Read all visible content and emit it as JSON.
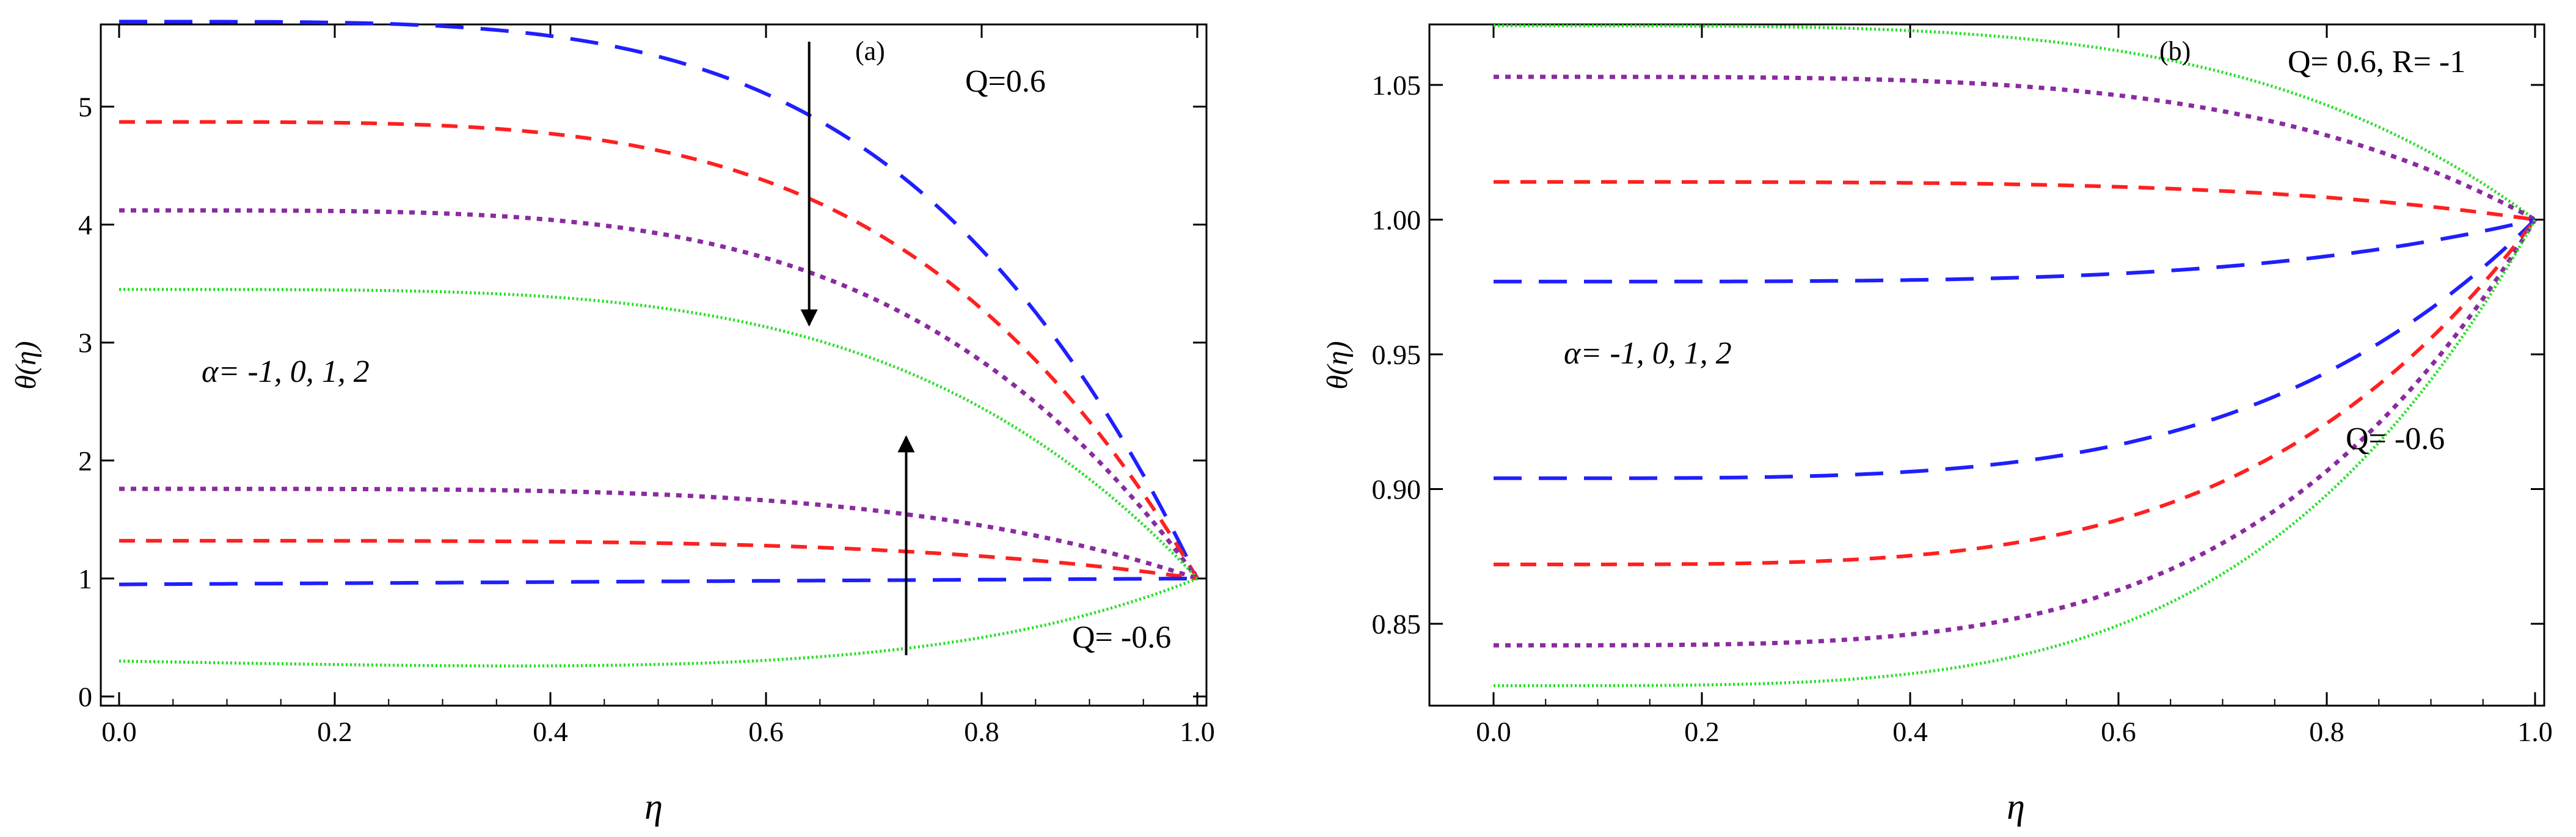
{
  "chart_data": [
    {
      "type": "line",
      "panel_label": "(a)",
      "xlabel": "η",
      "ylabel": "θ(η)",
      "xlim": [
        0.0,
        1.0
      ],
      "ylim": [
        0,
        5.8
      ],
      "xticks": [
        0.0,
        0.2,
        0.4,
        0.6,
        0.8,
        1.0
      ],
      "xtick_labels": [
        "0.0",
        "0.2",
        "0.4",
        "0.6",
        "0.8",
        "1.0"
      ],
      "yticks": [
        0,
        1,
        2,
        3,
        4,
        5
      ],
      "ytick_labels": [
        "0",
        "1",
        "2",
        "3",
        "4",
        "5"
      ],
      "annotations": [
        {
          "name": "panel-label",
          "text": "(a)"
        },
        {
          "name": "q-positive-label",
          "text": "Q=0.6"
        },
        {
          "name": "q-negative-label",
          "text": "Q= -0.6"
        },
        {
          "name": "alpha-label",
          "text": "α= -1, 0, 1, 2"
        }
      ],
      "series": [
        {
          "name": "Q=0.6, α=-1",
          "color": "#1f1fff",
          "style": "long-dash",
          "start": 5.72,
          "end": 1.0,
          "shape": "cap"
        },
        {
          "name": "Q=0.6, α=0",
          "color": "#ff2020",
          "style": "dash",
          "start": 4.87,
          "end": 1.0,
          "shape": "cap"
        },
        {
          "name": "Q=0.6, α=1",
          "color": "#8a2ba0",
          "style": "dot",
          "start": 4.12,
          "end": 1.0,
          "shape": "cap"
        },
        {
          "name": "Q=0.6, α=2",
          "color": "#22e022",
          "style": "fine-dot",
          "start": 3.45,
          "end": 1.0,
          "shape": "cap"
        },
        {
          "name": "Q=-0.6, α=1",
          "color": "#8a2ba0",
          "style": "dot",
          "start": 1.76,
          "end": 1.0,
          "shape": "cap"
        },
        {
          "name": "Q=-0.6, α=0",
          "color": "#ff2020",
          "style": "dash",
          "start": 1.32,
          "end": 1.0,
          "shape": "cap"
        },
        {
          "name": "Q=-0.6, α=-1",
          "color": "#1f1fff",
          "style": "long-dash",
          "start": 0.95,
          "end": 1.0,
          "shape": "flat"
        },
        {
          "name": "Q=-0.6, α=2",
          "color": "#22e022",
          "style": "fine-dot",
          "start": 0.3,
          "end": 1.0,
          "shape": "dip"
        }
      ],
      "arrows": [
        {
          "name": "arrow-down",
          "x": 0.64,
          "y_from": 5.55,
          "y_to": 3.15
        },
        {
          "name": "arrow-up",
          "x": 0.73,
          "y_from": 0.35,
          "y_to": 2.2
        }
      ]
    },
    {
      "type": "line",
      "panel_label": "(b)",
      "xlabel": "η",
      "ylabel": "θ(η)",
      "xlim": [
        0.0,
        1.0
      ],
      "ylim": [
        0.823,
        1.077
      ],
      "xticks": [
        0.0,
        0.2,
        0.4,
        0.6,
        0.8,
        1.0
      ],
      "xtick_labels": [
        "0.0",
        "0.2",
        "0.4",
        "0.6",
        "0.8",
        "1.0"
      ],
      "yticks": [
        0.85,
        0.9,
        0.95,
        1.0,
        1.05
      ],
      "ytick_labels": [
        "0.85",
        "0.90",
        "0.95",
        "1.00",
        "1.05"
      ],
      "annotations": [
        {
          "name": "panel-label",
          "text": "(b)"
        },
        {
          "name": "q-r-label",
          "text": "Q= 0.6, R= -1"
        },
        {
          "name": "q-negative-label",
          "text": "Q= -0.6"
        },
        {
          "name": "alpha-label",
          "text": "α= -1, 0, 1, 2"
        }
      ],
      "series": [
        {
          "name": "Q=0.6, α=2",
          "color": "#22e022",
          "style": "fine-dot",
          "start": 1.072,
          "end": 1.0,
          "shape": "cap"
        },
        {
          "name": "Q=0.6, α=1",
          "color": "#8a2ba0",
          "style": "dot",
          "start": 1.053,
          "end": 1.0,
          "shape": "cap"
        },
        {
          "name": "Q=0.6, α=0",
          "color": "#ff2020",
          "style": "dash",
          "start": 1.014,
          "end": 1.0,
          "shape": "cap"
        },
        {
          "name": "Q=0.6, α=-1",
          "color": "#1f1fff",
          "style": "long-dash",
          "start": 0.977,
          "end": 1.0,
          "shape": "cap"
        },
        {
          "name": "Q=-0.6, α=-1",
          "color": "#1f1fff",
          "style": "long-dash",
          "start": 0.904,
          "end": 1.0,
          "shape": "cap"
        },
        {
          "name": "Q=-0.6, α=0",
          "color": "#ff2020",
          "style": "dash",
          "start": 0.872,
          "end": 1.0,
          "shape": "cap"
        },
        {
          "name": "Q=-0.6, α=1",
          "color": "#8a2ba0",
          "style": "dot",
          "start": 0.842,
          "end": 1.0,
          "shape": "cap"
        },
        {
          "name": "Q=-0.6, α=2",
          "color": "#22e022",
          "style": "fine-dot",
          "start": 0.827,
          "end": 1.0,
          "shape": "cap"
        }
      ],
      "arrows": []
    }
  ]
}
